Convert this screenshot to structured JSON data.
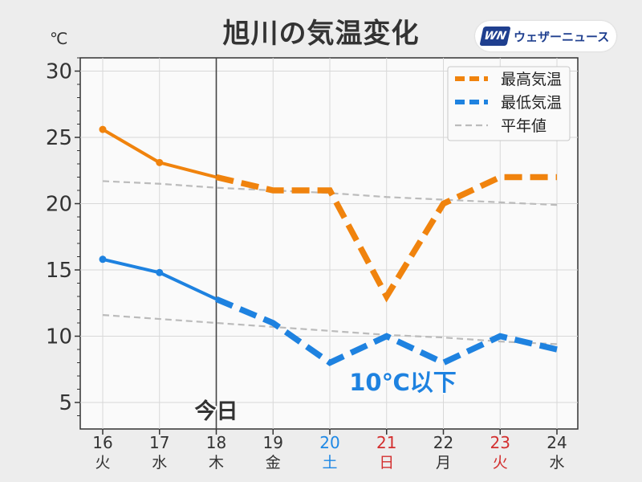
{
  "header": {
    "title": "旭川の気温変化",
    "unit": "℃"
  },
  "brand": {
    "mark": "WN",
    "name": "ウェザーニュース",
    "color": "#1f3f8f"
  },
  "chart_data": {
    "type": "line",
    "categories": [
      "16",
      "17",
      "18",
      "19",
      "20",
      "21",
      "22",
      "23",
      "24"
    ],
    "weekdays": [
      "火",
      "水",
      "木",
      "金",
      "土",
      "日",
      "月",
      "火",
      "水"
    ],
    "weekday_colors": [
      "#333333",
      "#333333",
      "#333333",
      "#333333",
      "#1e88e5",
      "#d32f2f",
      "#333333",
      "#d32f2f",
      "#333333"
    ],
    "ylim": [
      3,
      31
    ],
    "yticks": [
      5,
      10,
      15,
      20,
      25,
      30
    ],
    "today_index": 2,
    "today_label": "今日",
    "series": [
      {
        "name": "最高気温",
        "color": "#f0830d",
        "values": [
          25.6,
          23.1,
          22,
          21,
          21,
          13,
          20,
          22,
          22
        ]
      },
      {
        "name": "最低気温",
        "color": "#1e82e0",
        "values": [
          15.8,
          14.8,
          12.8,
          11,
          8,
          10,
          8,
          10,
          9
        ]
      },
      {
        "name": "平年値",
        "color": "#bbbbbb",
        "values_high": [
          21.7,
          21.5,
          21.2,
          21.0,
          20.8,
          20.5,
          20.3,
          20.1,
          19.9
        ],
        "values_low": [
          11.6,
          11.3,
          11.0,
          10.7,
          10.4,
          10.1,
          9.9,
          9.6,
          9.4
        ]
      }
    ],
    "annotation": {
      "text": "10℃以下",
      "color": "#1e82e0"
    },
    "grid": true,
    "legend": "top-right"
  }
}
